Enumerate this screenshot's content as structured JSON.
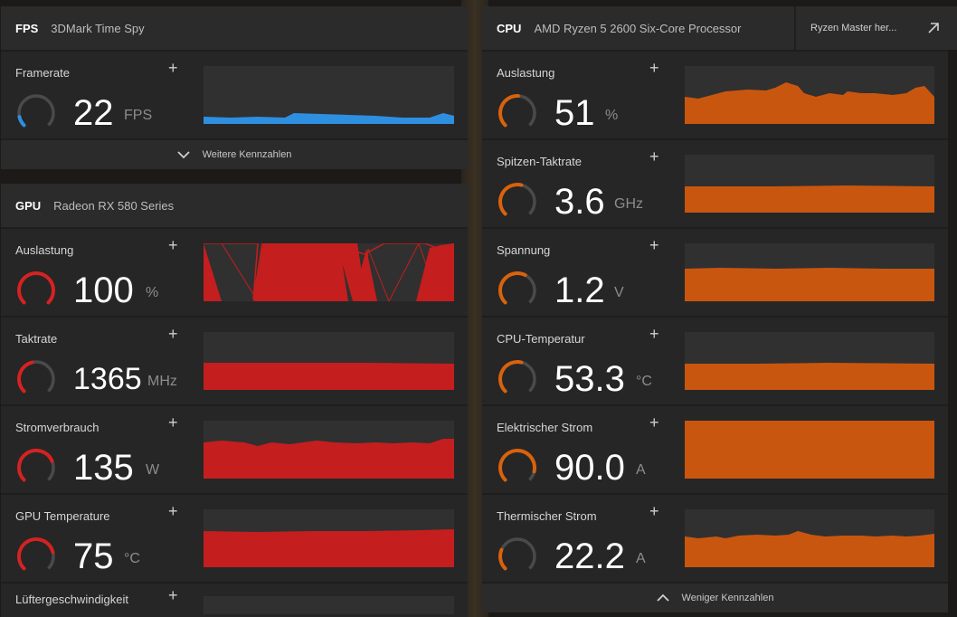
{
  "colors": {
    "fps": "#2e8fe0",
    "gpu": "#d52222",
    "cpu": "#d9620d",
    "ring_bg": "#4a4a4a"
  },
  "fps": {
    "title": "FPS",
    "subtitle": "3DMark Time Spy",
    "metrics": [
      {
        "label": "Framerate",
        "value": "22",
        "unit": "FPS",
        "fraction": 0.12
      }
    ],
    "more_label": "Weitere Kennzahlen"
  },
  "gpu": {
    "title": "GPU",
    "subtitle": "Radeon RX 580 Series",
    "metrics": [
      {
        "label": "Auslastung",
        "value": "100",
        "unit": "%",
        "fraction": 1.0
      },
      {
        "label": "Taktrate",
        "value": "1365",
        "unit": "MHz",
        "fraction": 0.45
      },
      {
        "label": "Stromverbrauch",
        "value": "135",
        "unit": "W",
        "fraction": 0.75
      },
      {
        "label": "GPU Temperature",
        "value": "75",
        "unit": "°C",
        "fraction": 0.78
      },
      {
        "label": "Lüftergeschwindigkeit"
      }
    ]
  },
  "cpu": {
    "title": "CPU",
    "subtitle": "AMD Ryzen 5 2600 Six-Core Processor",
    "ryzen_master_label": "Ryzen Master her...",
    "metrics": [
      {
        "label": "Auslastung",
        "value": "51",
        "unit": "%",
        "fraction": 0.51
      },
      {
        "label": "Spitzen-Taktrate",
        "value": "3.6",
        "unit": "GHz",
        "fraction": 0.55
      },
      {
        "label": "Spannung",
        "value": "1.2",
        "unit": "V",
        "fraction": 0.6
      },
      {
        "label": "CPU-Temperatur",
        "value": "53.3",
        "unit": "°C",
        "fraction": 0.55
      },
      {
        "label": "Elektrischer Strom",
        "value": "90.0",
        "unit": "A",
        "fraction": 0.88
      },
      {
        "label": "Thermischer Strom",
        "value": "22.2",
        "unit": "A",
        "fraction": 0.25
      }
    ],
    "less_label": "Weniger Kennzahlen"
  }
}
